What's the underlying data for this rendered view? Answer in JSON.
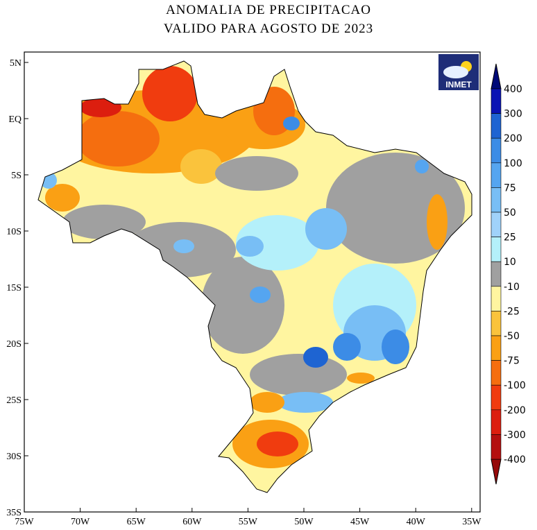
{
  "title": {
    "line1": "ANOMALIA DE PRECIPITACAO",
    "line2": "VALIDO PARA AGOSTO DE 2023"
  },
  "logo": {
    "text": "INMET",
    "icon": "cloud-sun-icon"
  },
  "axes": {
    "lat_ticks": [
      "5N",
      "EQ",
      "5S",
      "10S",
      "15S",
      "20S",
      "25S",
      "30S",
      "35S"
    ],
    "lon_ticks": [
      "75W",
      "70W",
      "65W",
      "60W",
      "55W",
      "50W",
      "45W",
      "40W",
      "35W"
    ]
  },
  "colorbar": {
    "labels": [
      "400",
      "300",
      "200",
      "100",
      "75",
      "50",
      "25",
      "10",
      "-10",
      "-25",
      "-50",
      "-75",
      "-100",
      "-200",
      "-300",
      "-400"
    ],
    "colors": [
      "#0a14b4",
      "#1e64d2",
      "#3c8ce6",
      "#55a5f0",
      "#78bef5",
      "#a0d2fa",
      "#b4f0fa",
      "#a0a0a0",
      "#fff5a0",
      "#fac33c",
      "#faa014",
      "#f56e0f",
      "#f03c0f",
      "#dc1e0f",
      "#b40f0f"
    ],
    "arrow_top_color": "#000a78",
    "arrow_bottom_color": "#960a0a"
  },
  "map_colors": {
    "wet": "#55a5f0",
    "dry": "#f56e0f",
    "neutral": "#a0a0a0"
  }
}
